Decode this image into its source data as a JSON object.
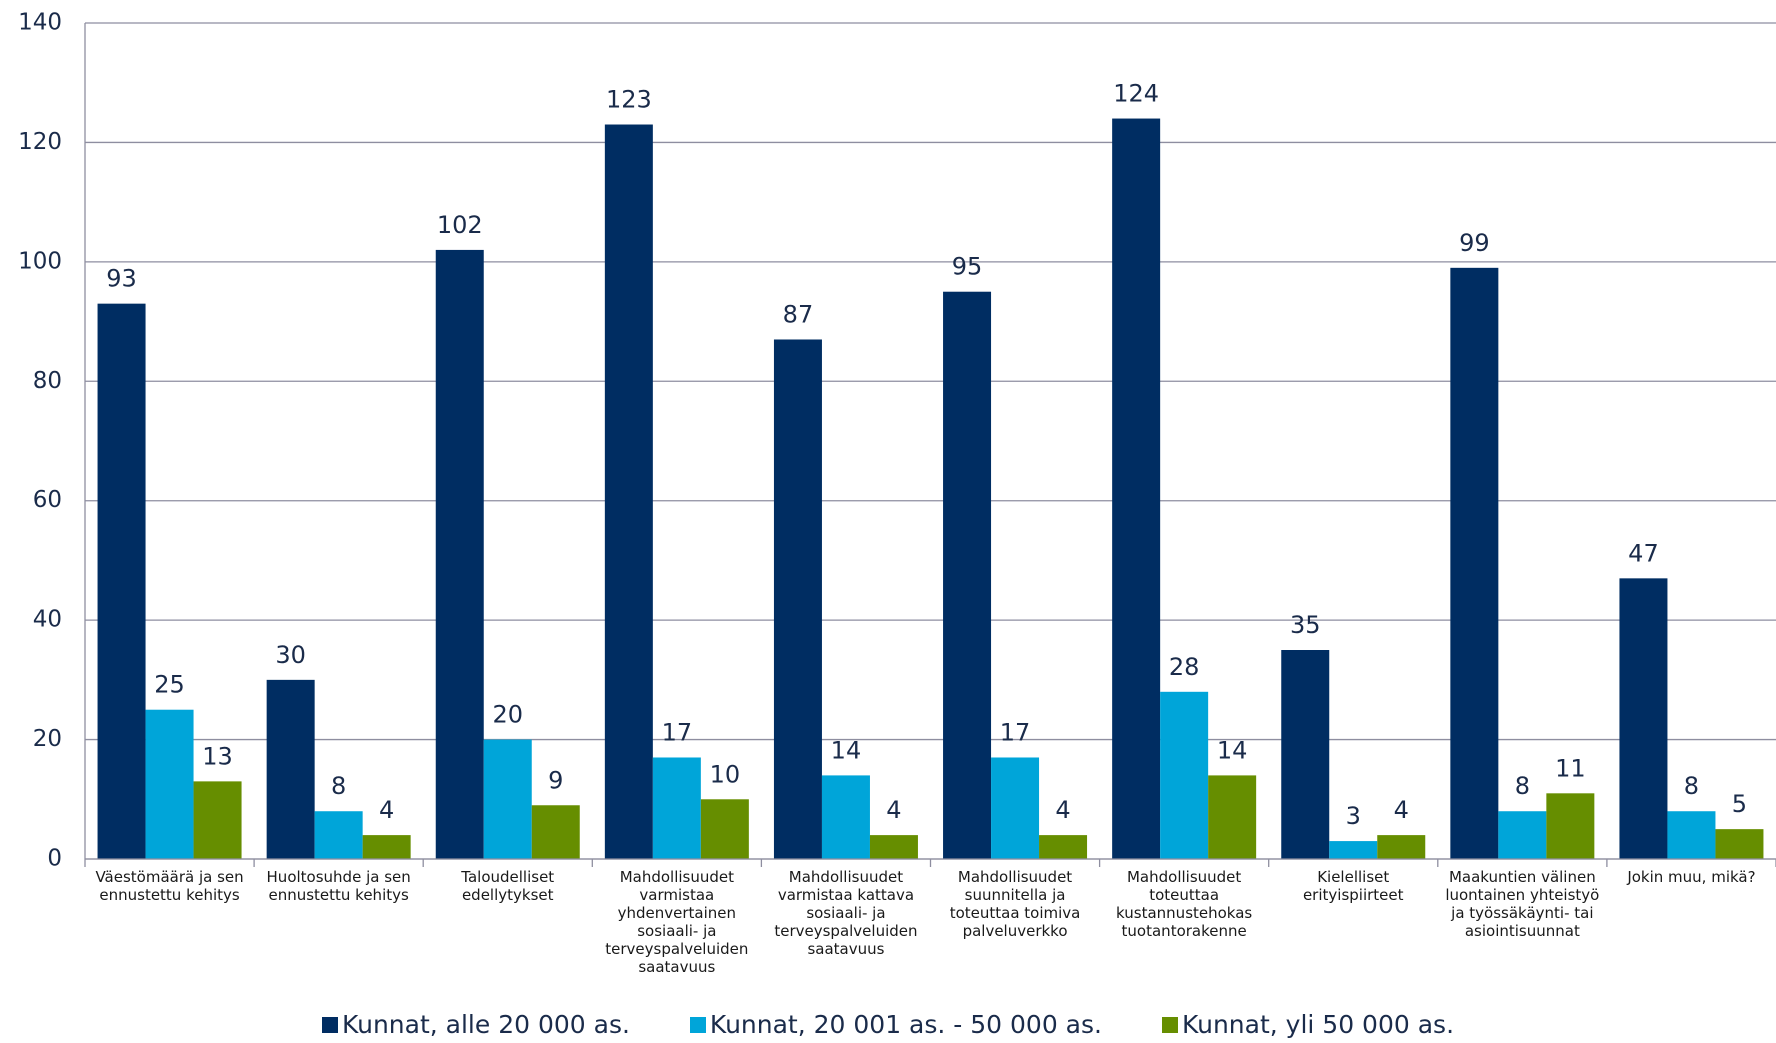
{
  "chart_data": {
    "type": "bar",
    "categories": [
      "Väestömäärä ja sen ennustettu kehitys",
      "Huoltosuhde ja sen ennustettu kehitys",
      "Taloudelliset edellytykset",
      "Mahdollisuudet varmistaa yhdenvertainen sosiaali- ja terveyspalveluiden saatavuus",
      "Mahdollisuudet varmistaa kattava sosiaali- ja terveyspalveluiden saatavuus",
      "Mahdollisuudet suunnitella ja toteuttaa toimiva palveluverkko",
      "Mahdollisuudet toteuttaa kustannustehokas tuotantorakenne",
      "Kielelliset erityispiirteet",
      "Maakuntien välinen luontainen yhteistyö ja työssäkäynti- tai asiointisuunnat",
      "Jokin muu, mikä?"
    ],
    "series": [
      {
        "name": "Kunnat, alle 20 000 as.",
        "color": "#002d62",
        "values": [
          93,
          30,
          102,
          123,
          87,
          95,
          124,
          35,
          99,
          47
        ]
      },
      {
        "name": "Kunnat, 20 001 as. - 50 000 as.",
        "color": "#00a5d9",
        "values": [
          25,
          8,
          20,
          17,
          14,
          17,
          28,
          3,
          8,
          8
        ]
      },
      {
        "name": "Kunnat, yli 50 000 as.",
        "color": "#668e00",
        "values": [
          13,
          4,
          9,
          10,
          4,
          4,
          14,
          4,
          11,
          5
        ]
      }
    ],
    "ylim": [
      0,
      140
    ],
    "yticks": [
      0,
      20,
      40,
      60,
      80,
      100,
      120,
      140
    ],
    "grid": true,
    "legend": "bottom"
  }
}
